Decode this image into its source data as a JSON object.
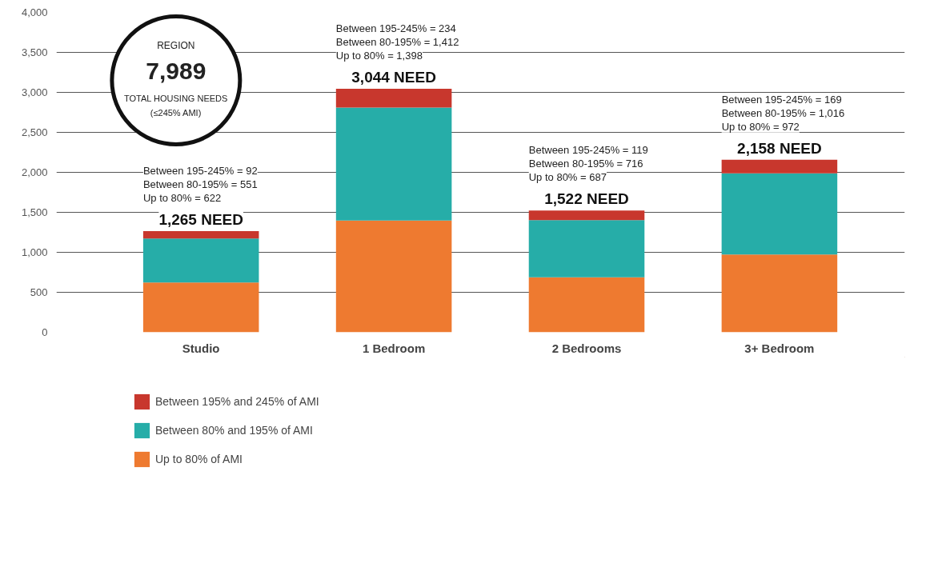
{
  "chart_data": {
    "type": "bar",
    "stacked": true,
    "categories": [
      "Studio",
      "1 Bedroom",
      "2 Bedrooms",
      "3+ Bedroom"
    ],
    "series": [
      {
        "name": "Up to 80% of AMI",
        "color": "#ee7a30",
        "values": [
          622,
          1398,
          687,
          972
        ]
      },
      {
        "name": "Between 80% and 195% of AMI",
        "color": "#26ada8",
        "values": [
          551,
          1412,
          716,
          1016
        ]
      },
      {
        "name": "Between 195% and 245% of AMI",
        "color": "#c8372d",
        "values": [
          92,
          234,
          119,
          169
        ]
      }
    ],
    "totals": [
      "1,265 NEED",
      "3,044 NEED",
      "1,522 NEED",
      "2,158 NEED"
    ],
    "annotations": [
      "REGION",
      "7,989",
      "TOTAL HOUSING NEEDS",
      "(≤245% AMI)",
      "Between 195-245% = 92",
      "Between 80-195% = 551",
      "Up to 80% = 622",
      "Between 195-245% = 234",
      "Between 80-195% = 1,412",
      "Up to 80% = 1,398",
      "Between 195-245% = 119",
      "Between 80-195% = 716",
      "Up to 80% = 687",
      "Between 195-245% = 169",
      "Between 80-195% = 1,016",
      "Up to 80% = 972"
    ],
    "ylim": [
      0,
      4000
    ],
    "yticks": [
      {
        "value": 0,
        "label": "0"
      },
      {
        "value": 500,
        "label": "500"
      },
      {
        "value": 1000,
        "label": "1,000"
      },
      {
        "value": 1500,
        "label": "1,500"
      },
      {
        "value": 2000,
        "label": "2,000"
      },
      {
        "value": 2500,
        "label": "2,500"
      },
      {
        "value": 3000,
        "label": "3,000"
      },
      {
        "value": 3500,
        "label": "3,500"
      },
      {
        "value": 4000,
        "label": "4,000"
      }
    ],
    "grid": "y",
    "legend": "bottom"
  }
}
